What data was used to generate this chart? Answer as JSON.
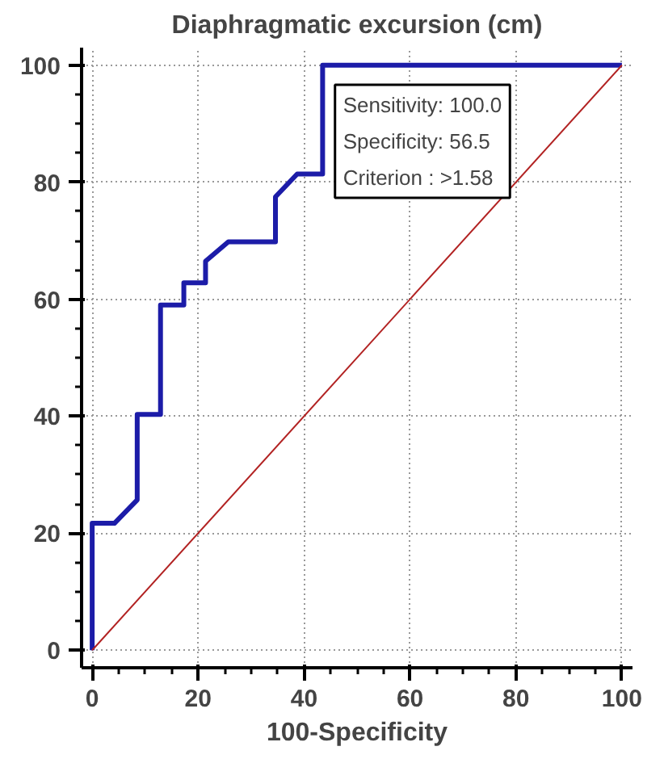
{
  "chart_data": {
    "type": "line",
    "title": "Diaphragmatic excursion (cm)",
    "xlabel": "100-Specificity",
    "series": [
      {
        "color": "#1c1ca8",
        "x": [
          0,
          0,
          4.2,
          8.5,
          8.5,
          12.9,
          12.9,
          17.3,
          17.3,
          21.4,
          21.4,
          25.7,
          34.6,
          34.6,
          38.7,
          43.5,
          43.5,
          100
        ],
        "values": [
          0,
          21.7,
          21.7,
          25.7,
          40.3,
          40.3,
          59.0,
          59.0,
          62.8,
          62.8,
          66.5,
          69.8,
          69.8,
          77.5,
          81.4,
          81.4,
          100,
          100
        ]
      },
      {
        "color": "#b22222",
        "x": [
          0,
          100
        ],
        "values": [
          0,
          100
        ]
      }
    ],
    "xlim": [
      -2,
      102
    ],
    "ylim": [
      -3,
      103
    ],
    "xticks": [
      0,
      20,
      40,
      60,
      80,
      100
    ],
    "yticks": [
      0,
      20,
      40,
      60,
      80,
      100
    ],
    "grid": true,
    "annotations": [
      "Sensitivity: 100.0",
      "Specificity: 56.5",
      "Criterion : >1.58"
    ]
  }
}
